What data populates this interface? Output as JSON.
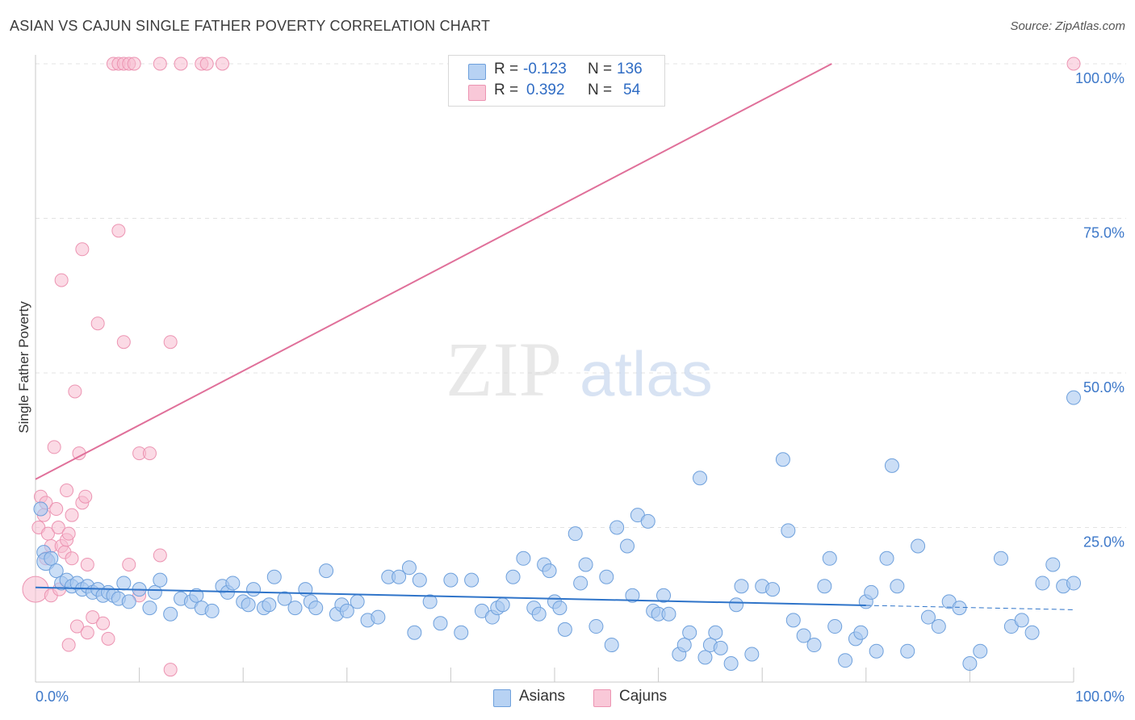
{
  "header": {
    "title": "ASIAN VS CAJUN SINGLE FATHER POVERTY CORRELATION CHART",
    "source": "Source: ZipAtlas.com"
  },
  "watermark": {
    "part1": "ZIP",
    "part2": "atlas"
  },
  "legend": {
    "rows": [
      {
        "r_label": "R =",
        "r_value": "-0.123",
        "n_label": "N =",
        "n_value": "136"
      },
      {
        "r_label": "R =",
        "r_value": "0.392",
        "n_label": "N =",
        "n_value": "54"
      }
    ]
  },
  "bottom_legend": {
    "asians": "Asians",
    "cajuns": "Cajuns"
  },
  "colors": {
    "asian_fill": "#a9c8f0",
    "asian_stroke": "#6ea0dc",
    "asian_line": "#2f74c9",
    "cajun_fill": "#f7bccf",
    "cajun_stroke": "#ec94b2",
    "cajun_line": "#e0709a",
    "tick_text": "#3d78c9",
    "grid": "#e3e3e3"
  },
  "chart_data": {
    "type": "scatter",
    "title": "ASIAN VS CAJUN SINGLE FATHER POVERTY CORRELATION CHART",
    "xlabel": "",
    "ylabel": "Single Father Poverty",
    "xlim": [
      0,
      100
    ],
    "ylim": [
      0,
      100
    ],
    "x_tick_labels": [
      "0.0%",
      "100.0%"
    ],
    "y_tick_labels": [
      "25.0%",
      "50.0%",
      "75.0%",
      "100.0%"
    ],
    "y_ticks": [
      25,
      50,
      75,
      100
    ],
    "grid": true,
    "legend_position": "top-center",
    "series": [
      {
        "name": "Asians",
        "r": -0.123,
        "n": 136,
        "trend": {
          "x0": 0,
          "y0": 15.3,
          "x1": 80,
          "y1": 12.4,
          "dash_to_x": 100,
          "dash_to_y": 11.7
        },
        "points": [
          [
            0.5,
            28
          ],
          [
            0.8,
            21
          ],
          [
            1,
            19.5
          ],
          [
            1.5,
            20
          ],
          [
            2,
            18
          ],
          [
            2.5,
            16
          ],
          [
            3,
            16.5
          ],
          [
            3.5,
            15.5
          ],
          [
            4,
            16
          ],
          [
            4.5,
            15
          ],
          [
            5,
            15.5
          ],
          [
            5.5,
            14.5
          ],
          [
            6,
            15
          ],
          [
            6.5,
            14
          ],
          [
            7,
            14.5
          ],
          [
            7.5,
            14
          ],
          [
            8,
            13.5
          ],
          [
            8.5,
            16
          ],
          [
            9,
            13
          ],
          [
            10,
            15
          ],
          [
            11,
            12
          ],
          [
            11.5,
            14.5
          ],
          [
            12,
            16.5
          ],
          [
            13,
            11
          ],
          [
            14,
            13.5
          ],
          [
            15,
            13
          ],
          [
            15.5,
            14
          ],
          [
            16,
            12
          ],
          [
            17,
            11.5
          ],
          [
            18,
            15.5
          ],
          [
            18.5,
            14.5
          ],
          [
            19,
            16
          ],
          [
            20,
            13
          ],
          [
            20.5,
            12.5
          ],
          [
            21,
            15
          ],
          [
            22,
            12
          ],
          [
            22.5,
            12.5
          ],
          [
            23,
            17
          ],
          [
            24,
            13.5
          ],
          [
            25,
            12
          ],
          [
            26,
            15
          ],
          [
            26.5,
            13
          ],
          [
            27,
            12
          ],
          [
            28,
            18
          ],
          [
            29,
            11
          ],
          [
            29.5,
            12.5
          ],
          [
            30,
            11.5
          ],
          [
            31,
            13
          ],
          [
            32,
            10
          ],
          [
            33,
            10.5
          ],
          [
            34,
            17
          ],
          [
            35,
            17
          ],
          [
            36,
            18.5
          ],
          [
            36.5,
            8
          ],
          [
            37,
            16.5
          ],
          [
            38,
            13
          ],
          [
            39,
            9.5
          ],
          [
            40,
            16.5
          ],
          [
            41,
            8
          ],
          [
            42,
            16.5
          ],
          [
            43,
            11.5
          ],
          [
            44,
            10.5
          ],
          [
            44.5,
            12
          ],
          [
            45,
            12.5
          ],
          [
            46,
            17
          ],
          [
            47,
            20
          ],
          [
            48,
            12
          ],
          [
            48.5,
            11
          ],
          [
            49,
            19
          ],
          [
            49.5,
            18
          ],
          [
            50,
            13
          ],
          [
            50.5,
            12
          ],
          [
            51,
            8.5
          ],
          [
            52,
            24
          ],
          [
            52.5,
            16
          ],
          [
            53,
            19
          ],
          [
            54,
            9
          ],
          [
            55,
            17
          ],
          [
            55.5,
            6
          ],
          [
            56,
            25
          ],
          [
            57,
            22
          ],
          [
            57.5,
            14
          ],
          [
            58,
            27
          ],
          [
            59,
            26
          ],
          [
            59.5,
            11.5
          ],
          [
            60,
            11
          ],
          [
            60.5,
            14
          ],
          [
            61,
            11
          ],
          [
            62,
            4.5
          ],
          [
            62.5,
            6
          ],
          [
            63,
            8
          ],
          [
            64,
            33
          ],
          [
            64.5,
            4
          ],
          [
            65,
            6
          ],
          [
            65.5,
            8
          ],
          [
            66,
            5.5
          ],
          [
            67,
            3
          ],
          [
            67.5,
            12.5
          ],
          [
            68,
            15.5
          ],
          [
            69,
            4.5
          ],
          [
            70,
            15.5
          ],
          [
            71,
            15
          ],
          [
            72,
            36
          ],
          [
            72.5,
            24.5
          ],
          [
            73,
            10
          ],
          [
            74,
            7.5
          ],
          [
            75,
            6
          ],
          [
            76,
            15.5
          ],
          [
            76.5,
            20
          ],
          [
            77,
            9
          ],
          [
            78,
            3.5
          ],
          [
            79,
            7
          ],
          [
            79.5,
            8
          ],
          [
            80,
            13
          ],
          [
            80.5,
            14.5
          ],
          [
            81,
            5
          ],
          [
            82,
            20
          ],
          [
            82.5,
            35
          ],
          [
            83,
            15.5
          ],
          [
            84,
            5
          ],
          [
            85,
            22
          ],
          [
            86,
            10.5
          ],
          [
            87,
            9
          ],
          [
            88,
            13
          ],
          [
            89,
            12
          ],
          [
            90,
            3
          ],
          [
            91,
            5
          ],
          [
            93,
            20
          ],
          [
            94,
            9
          ],
          [
            95,
            10
          ],
          [
            96,
            8
          ],
          [
            97,
            16
          ],
          [
            98,
            19
          ],
          [
            99,
            15.5
          ],
          [
            100,
            16
          ],
          [
            100,
            46
          ]
        ]
      },
      {
        "name": "Cajuns",
        "r": 0.392,
        "n": 54,
        "trend": {
          "x0": 0,
          "y0": 32.8,
          "x1": 76.7,
          "y1": 100
        },
        "points": [
          [
            0,
            15
          ],
          [
            0.3,
            25
          ],
          [
            0.5,
            30
          ],
          [
            0.8,
            27
          ],
          [
            1,
            29
          ],
          [
            1.2,
            24
          ],
          [
            1.5,
            22
          ],
          [
            1.5,
            14
          ],
          [
            1.8,
            38
          ],
          [
            2,
            28
          ],
          [
            2.2,
            25
          ],
          [
            2.5,
            65
          ],
          [
            2.5,
            22
          ],
          [
            2.8,
            21
          ],
          [
            3,
            31
          ],
          [
            3,
            23
          ],
          [
            3.2,
            24
          ],
          [
            3.5,
            27
          ],
          [
            3.5,
            20
          ],
          [
            3.8,
            47
          ],
          [
            4,
            9
          ],
          [
            4.2,
            37
          ],
          [
            4.5,
            70
          ],
          [
            4.5,
            29
          ],
          [
            4.8,
            30
          ],
          [
            5,
            8
          ],
          [
            5,
            19
          ],
          [
            5.5,
            10.5
          ],
          [
            6,
            58
          ],
          [
            6.5,
            9.5
          ],
          [
            7,
            7
          ],
          [
            7.5,
            100
          ],
          [
            8,
            100
          ],
          [
            8,
            73
          ],
          [
            8.5,
            100
          ],
          [
            8.5,
            55
          ],
          [
            9,
            100
          ],
          [
            9,
            19
          ],
          [
            9.5,
            100
          ],
          [
            10,
            37
          ],
          [
            10,
            14
          ],
          [
            11,
            37
          ],
          [
            12,
            100
          ],
          [
            12,
            20.5
          ],
          [
            13,
            2
          ],
          [
            13,
            55
          ],
          [
            14,
            100
          ],
          [
            16,
            100
          ],
          [
            18,
            100
          ],
          [
            16.5,
            100
          ],
          [
            2.3,
            15
          ],
          [
            3.2,
            6
          ],
          [
            1,
            20
          ],
          [
            100,
            100
          ]
        ]
      }
    ]
  }
}
